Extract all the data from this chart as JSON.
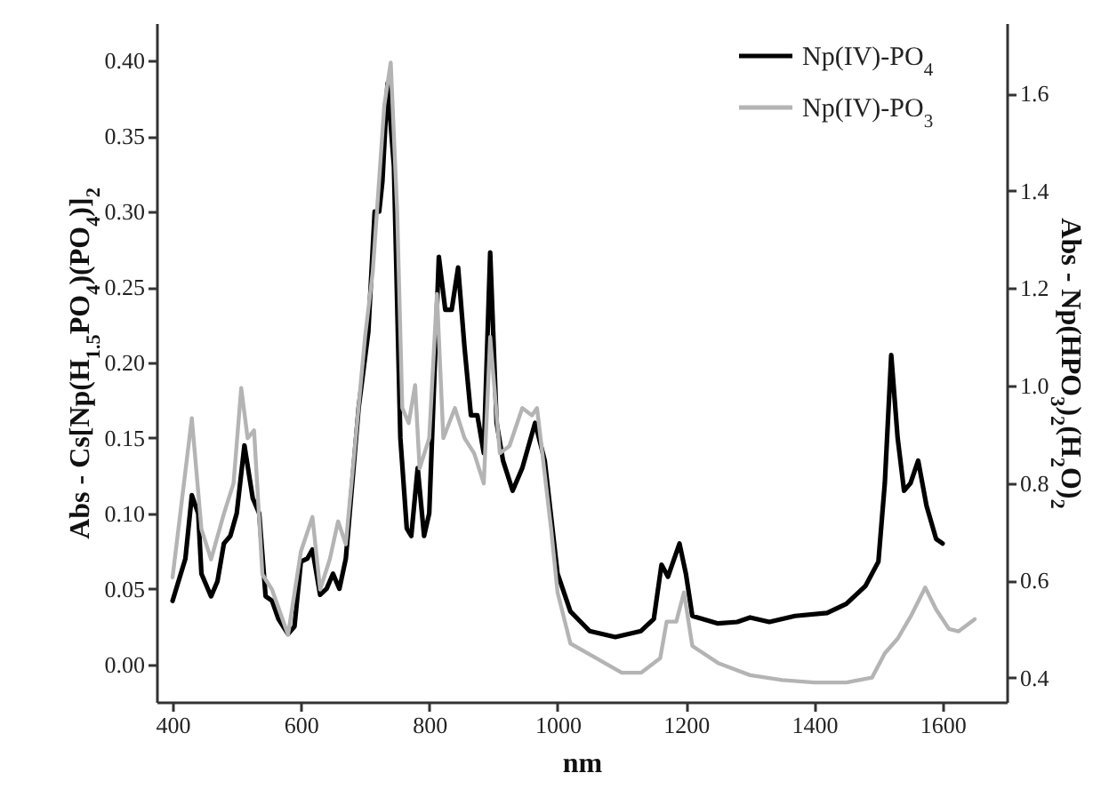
{
  "chart_data": {
    "type": "line",
    "xlabel": "nm",
    "ylabel": "Abs - Cs[Np(H$_{1.5}$PO$_{4}$)(PO$_{4}$)]$_{2}$",
    "y2label": "Abs - Np(HPO$_{3}$)$_{2}$(H$_{2}$O)$_{2}$",
    "xlim": [
      375,
      1700
    ],
    "xticks": [
      400,
      600,
      800,
      1000,
      1200,
      1400,
      1600
    ],
    "ylim": [
      -0.025,
      0.425
    ],
    "yticks": [
      {
        "value": 0,
        "label": "0.00"
      },
      {
        "value": 0.05,
        "label": "0.05"
      },
      {
        "value": 0.1,
        "label": "0.10"
      },
      {
        "value": 0.15,
        "label": "0.15"
      },
      {
        "value": 0.2,
        "label": "0.20"
      },
      {
        "value": 0.25,
        "label": "0.25"
      },
      {
        "value": 0.3,
        "label": "0.30"
      },
      {
        "value": 0.35,
        "label": "0.35"
      },
      {
        "value": 0.4,
        "label": "0.40"
      }
    ],
    "y2lim": [
      0.35,
      1.745
    ],
    "y2ticks": [
      {
        "value": 0.4,
        "label": "0.4"
      },
      {
        "value": 0.6,
        "label": "0.6"
      },
      {
        "value": 0.8,
        "label": "0.8"
      },
      {
        "value": 1,
        "label": "1.0"
      },
      {
        "value": 1.2,
        "label": "1.2"
      },
      {
        "value": 1.4,
        "label": "1.4"
      },
      {
        "value": 1.6,
        "label": "1.6"
      }
    ],
    "legend": "top right",
    "series": [
      {
        "name": "Np(IV)-PO$_{4}$",
        "color": "#000000",
        "x": [
          400,
          420,
          430,
          440,
          445,
          460,
          470,
          480,
          490,
          500,
          512,
          525,
          535,
          545,
          555,
          565,
          580,
          590,
          600,
          610,
          618,
          630,
          640,
          650,
          660,
          670,
          690,
          705,
          715,
          722,
          727,
          735,
          745,
          755,
          765,
          772,
          782,
          792,
          800,
          815,
          825,
          835,
          845,
          855,
          865,
          875,
          885,
          895,
          905,
          915,
          930,
          945,
          965,
          980,
          1000,
          1020,
          1050,
          1090,
          1130,
          1150,
          1162,
          1172,
          1190,
          1200,
          1210,
          1250,
          1280,
          1300,
          1330,
          1370,
          1420,
          1450,
          1480,
          1500,
          1510,
          1520,
          1530,
          1540,
          1550,
          1562,
          1575,
          1590,
          1600
        ],
        "values": [
          0.042,
          0.07,
          0.112,
          0.1,
          0.06,
          0.045,
          0.055,
          0.08,
          0.085,
          0.1,
          0.145,
          0.11,
          0.1,
          0.045,
          0.042,
          0.03,
          0.02,
          0.025,
          0.068,
          0.07,
          0.076,
          0.046,
          0.05,
          0.06,
          0.05,
          0.07,
          0.17,
          0.22,
          0.3,
          0.3,
          0.32,
          0.385,
          0.33,
          0.15,
          0.09,
          0.085,
          0.13,
          0.085,
          0.1,
          0.27,
          0.235,
          0.235,
          0.263,
          0.21,
          0.165,
          0.165,
          0.14,
          0.273,
          0.16,
          0.135,
          0.115,
          0.13,
          0.16,
          0.135,
          0.06,
          0.035,
          0.022,
          0.018,
          0.022,
          0.03,
          0.066,
          0.058,
          0.08,
          0.06,
          0.032,
          0.027,
          0.028,
          0.031,
          0.028,
          0.032,
          0.034,
          0.04,
          0.052,
          0.068,
          0.12,
          0.205,
          0.15,
          0.115,
          0.12,
          0.135,
          0.105,
          0.083,
          0.08
        ]
      },
      {
        "name": "Np(IV)-PO$_{3}$",
        "color": "#b4b4b4",
        "axis": "y2",
        "x": [
          400,
          430,
          445,
          460,
          480,
          495,
          507,
          517,
          527,
          540,
          555,
          580,
          600,
          618,
          630,
          645,
          658,
          670,
          700,
          712,
          730,
          740,
          750,
          758,
          768,
          778,
          785,
          800,
          812,
          822,
          840,
          855,
          870,
          885,
          895,
          910,
          925,
          945,
          960,
          968,
          990,
          1000,
          1020,
          1060,
          1100,
          1130,
          1160,
          1170,
          1185,
          1197,
          1210,
          1250,
          1300,
          1350,
          1400,
          1450,
          1490,
          1510,
          1530,
          1550,
          1573,
          1590,
          1610,
          1625,
          1650
        ],
        "values": [
          0.606,
          0.933,
          0.705,
          0.643,
          0.737,
          0.799,
          0.995,
          0.892,
          0.908,
          0.612,
          0.581,
          0.488,
          0.659,
          0.73,
          0.581,
          0.643,
          0.721,
          0.674,
          1.1,
          1.234,
          1.576,
          1.664,
          1.36,
          0.954,
          0.923,
          1.001,
          0.83,
          0.892,
          1.188,
          0.892,
          0.954,
          0.892,
          0.861,
          0.799,
          1.1,
          0.861,
          0.876,
          0.954,
          0.939,
          0.954,
          0.705,
          0.575,
          0.47,
          0.44,
          0.41,
          0.41,
          0.44,
          0.515,
          0.515,
          0.575,
          0.465,
          0.43,
          0.405,
          0.395,
          0.39,
          0.39,
          0.4,
          0.45,
          0.48,
          0.525,
          0.585,
          0.54,
          0.5,
          0.495,
          0.52
        ]
      }
    ]
  }
}
